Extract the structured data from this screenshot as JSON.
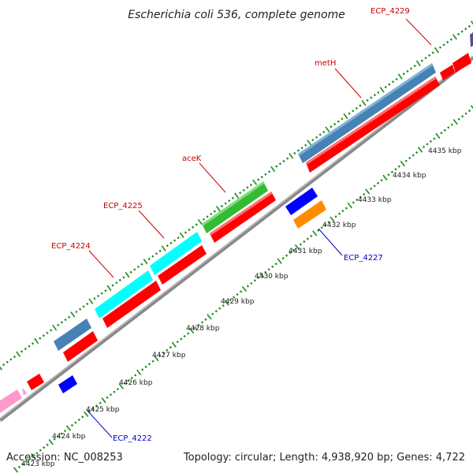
{
  "title": "Escherichia coli 536, complete genome",
  "footer": {
    "accession": "Accession: NC_008253",
    "summary": "Topology: circular; Length: 4,938,920 bp; Genes: 4,722"
  },
  "colors": {
    "label_forward": "#cc0000",
    "label_reverse": "#0000cc",
    "ticks": "#1a8a1a",
    "backbone": "#888888"
  },
  "kbp_labels": [
    "4423 kbp",
    "4424 kbp",
    "4425 kbp",
    "4426 kbp",
    "4427 kbp",
    "4428 kbp",
    "4429 kbp",
    "4430 kbp",
    "4431 kbp",
    "4432 kbp",
    "4433 kbp",
    "4434 kbp",
    "4435 kbp"
  ],
  "gene_labels": [
    {
      "text": "ECP_4229",
      "color": "#cc0000"
    },
    {
      "text": "metH",
      "color": "#cc0000"
    },
    {
      "text": "aceK",
      "color": "#cc0000"
    },
    {
      "text": "ECP_4225",
      "color": "#cc0000"
    },
    {
      "text": "ECP_4224",
      "color": "#cc0000"
    },
    {
      "text": "ECP_4227",
      "color": "#0000cc"
    },
    {
      "text": "ECP_4222",
      "color": "#0000cc"
    }
  ]
}
